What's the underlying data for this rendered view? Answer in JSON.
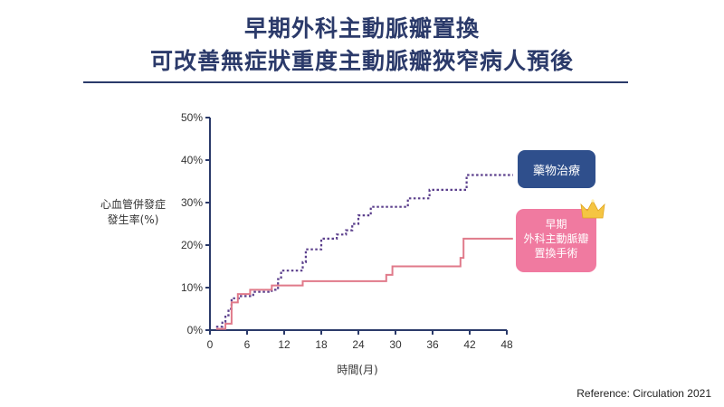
{
  "title": {
    "line1": "早期外科主動脈瓣置換",
    "line2": "可改善無症狀重度主動脈瓣狹窄病人預後"
  },
  "reference": "Reference: Circulation 2021",
  "colors": {
    "title": "#2b3a6a",
    "axis": "#2b3a6a",
    "medication": "#5b3f8c",
    "surgery": "#e07a8a",
    "medication_box": "#2f4f8c",
    "surgery_box": "#f07aa0",
    "crown": "#f5c542"
  },
  "chart_data": {
    "type": "line",
    "xlabel": "時間(月)",
    "ylabel": "心血管併發症\n發生率(%)",
    "xlim": [
      0,
      48
    ],
    "ylim": [
      0,
      50
    ],
    "x_ticks": [
      "0",
      "6",
      "12",
      "18",
      "24",
      "30",
      "36",
      "42",
      "48"
    ],
    "y_ticks": [
      "0%",
      "10%",
      "20%",
      "30%",
      "40%",
      "50%"
    ],
    "grid": false,
    "series": [
      {
        "name": "藥物治療",
        "style": "dotted",
        "step": true,
        "points": [
          [
            1,
            0.8
          ],
          [
            2,
            2
          ],
          [
            2.5,
            3.5
          ],
          [
            3,
            5
          ],
          [
            3.5,
            7.5
          ],
          [
            5,
            8
          ],
          [
            7,
            9
          ],
          [
            10,
            9.5
          ],
          [
            11,
            12
          ],
          [
            11.5,
            14
          ],
          [
            15,
            16
          ],
          [
            15.5,
            19
          ],
          [
            18,
            21.5
          ],
          [
            20.5,
            22.5
          ],
          [
            22,
            23.5
          ],
          [
            23,
            25
          ],
          [
            24,
            27
          ],
          [
            26,
            29
          ],
          [
            32,
            31
          ],
          [
            35.5,
            33
          ],
          [
            41.5,
            36.5
          ],
          [
            49,
            36.5
          ]
        ]
      },
      {
        "name": "早期\n外科主動脈瓣\n置換手術",
        "style": "solid",
        "step": true,
        "points": [
          [
            1,
            0.3
          ],
          [
            2.5,
            1.5
          ],
          [
            3.5,
            6.5
          ],
          [
            4.5,
            8.5
          ],
          [
            6.5,
            9.5
          ],
          [
            10,
            10.5
          ],
          [
            15,
            11.5
          ],
          [
            28.5,
            13
          ],
          [
            29.5,
            15
          ],
          [
            40.5,
            17
          ],
          [
            41,
            21.5
          ],
          [
            49,
            21.5
          ]
        ]
      }
    ],
    "legend": [
      {
        "label": "藥物治療",
        "placement": "right"
      },
      {
        "label": "早期\n外科主動脈瓣\n置換手術",
        "placement": "right",
        "icon": "crown-icon"
      }
    ]
  }
}
